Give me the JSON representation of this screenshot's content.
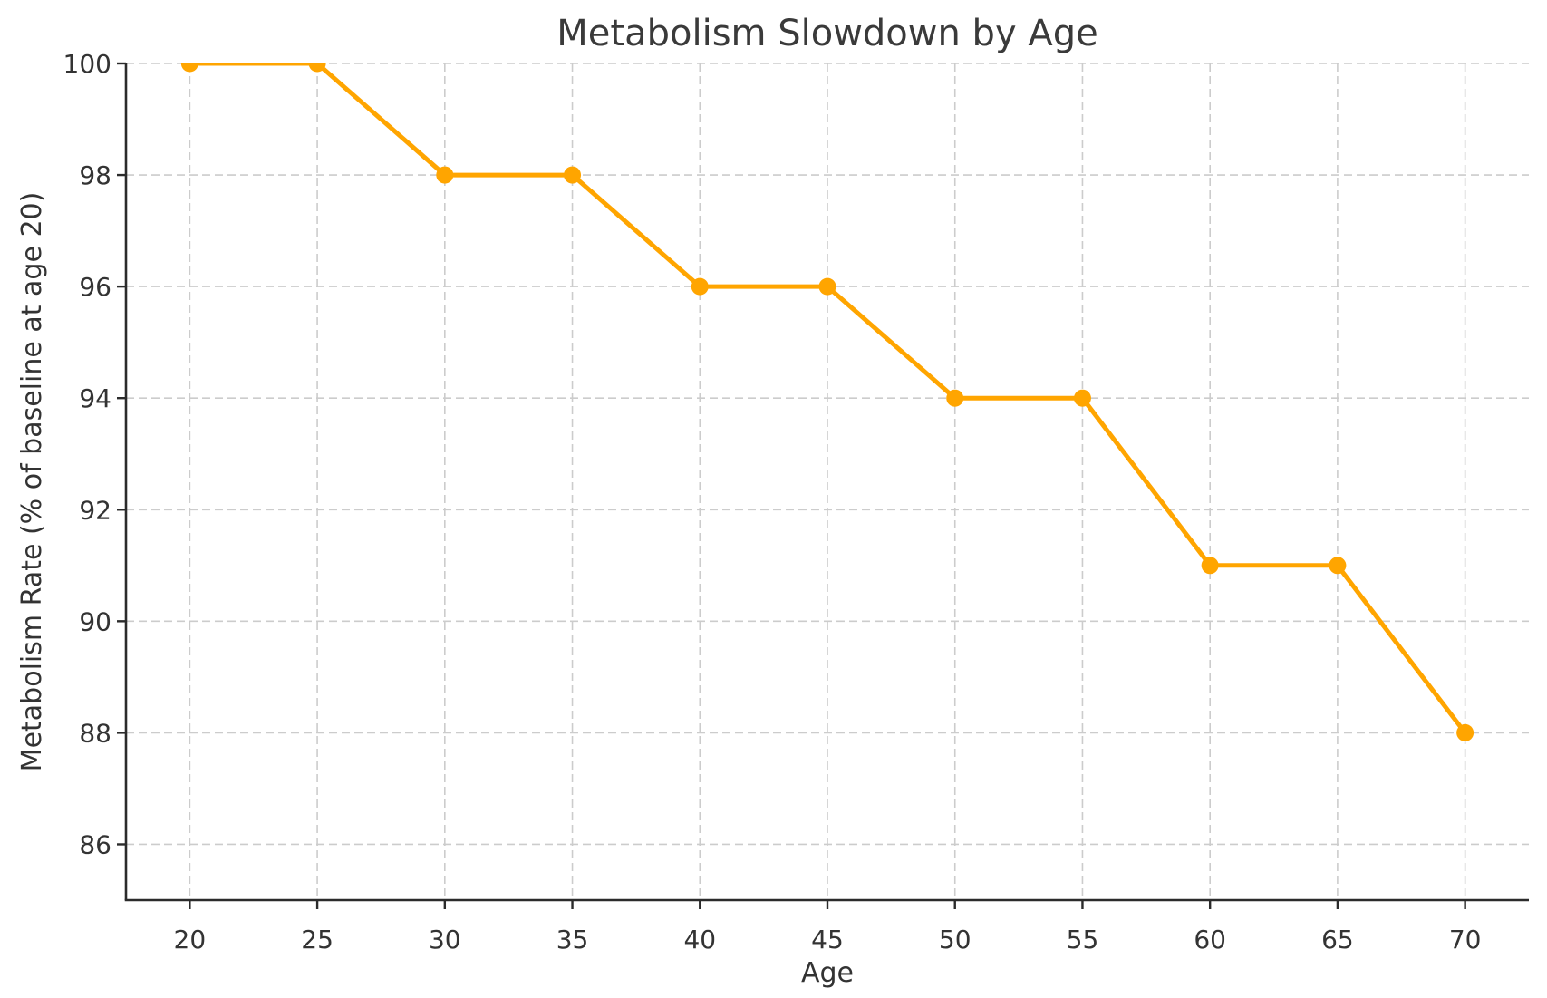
{
  "chart_data": {
    "type": "line",
    "title": "Metabolism Slowdown by Age",
    "xlabel": "Age",
    "ylabel": "Metabolism Rate (% of baseline at age 20)",
    "x": [
      20,
      25,
      30,
      35,
      40,
      45,
      50,
      55,
      60,
      65,
      70
    ],
    "series": [
      {
        "name": "metabolism-rate",
        "values": [
          100,
          100,
          98,
          98,
          96,
          96,
          94,
          94,
          91,
          91,
          88
        ]
      }
    ],
    "xticks": [
      20,
      25,
      30,
      35,
      40,
      45,
      50,
      55,
      60,
      65,
      70
    ],
    "yticks": [
      86,
      88,
      90,
      92,
      94,
      96,
      98,
      100
    ],
    "xlim": [
      17.5,
      72.5
    ],
    "ylim": [
      85,
      100
    ],
    "grid": true,
    "grid_style": "dashed",
    "legend_position": "none",
    "line_color": "#FFA500",
    "marker": "circle",
    "grid_color": "#CCCCCC",
    "spine_color": "#2B2B2B",
    "text_color": "#333333",
    "background_color": "#FFFFFF"
  }
}
